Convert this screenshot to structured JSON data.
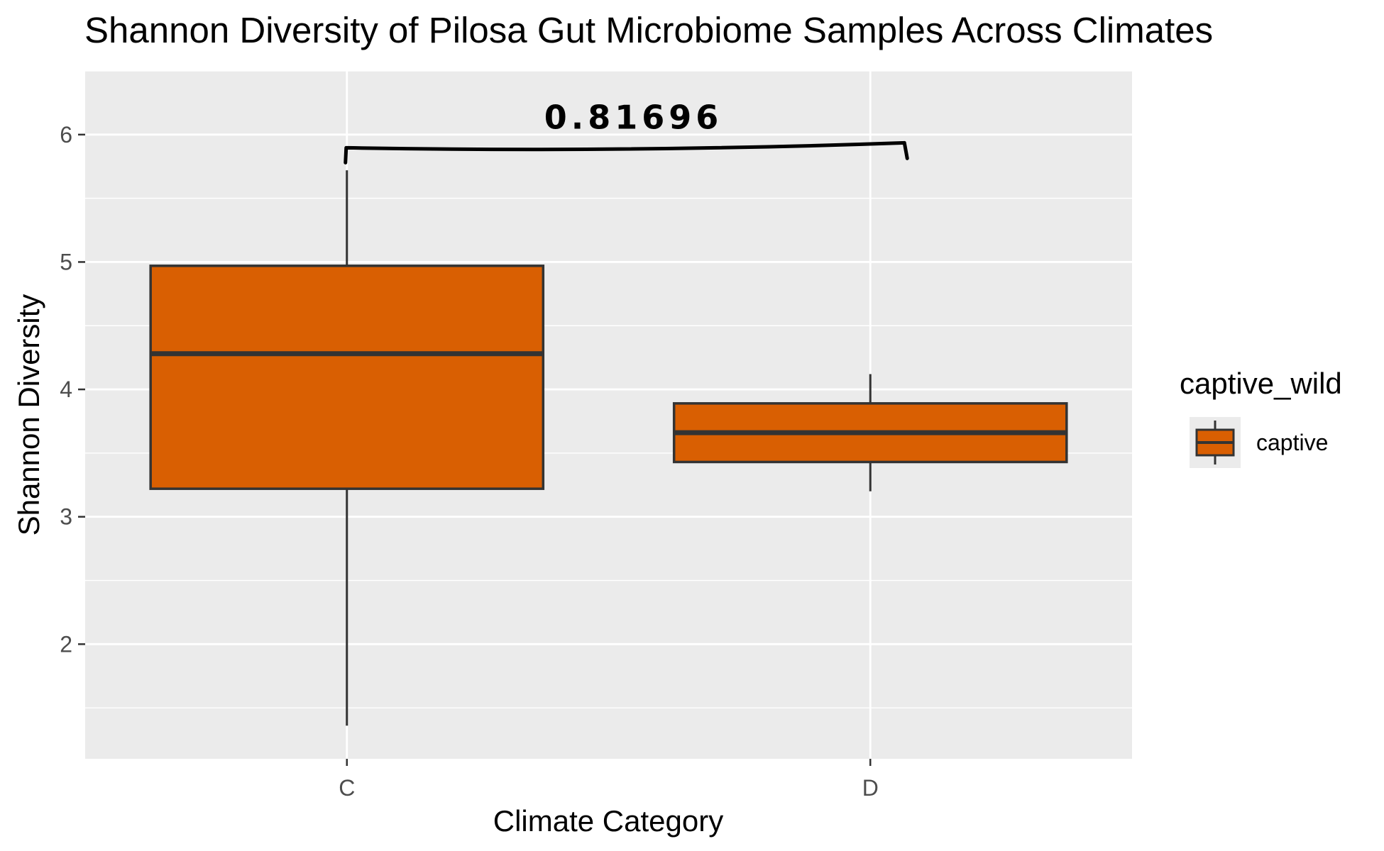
{
  "chart_data": {
    "type": "box",
    "title": "Shannon Diversity of Pilosa Gut Microbiome Samples Across Climates",
    "xlabel": "Climate Category",
    "ylabel": "Shannon Diversity",
    "categories": [
      "C",
      "D"
    ],
    "ylim": [
      1.1,
      6.5
    ],
    "yticks": [
      2,
      3,
      4,
      5,
      6
    ],
    "grid": true,
    "series": [
      {
        "name": "captive",
        "boxes": [
          {
            "category": "C",
            "min": 1.36,
            "q1": 3.22,
            "median": 4.28,
            "q3": 4.97,
            "max": 5.72
          },
          {
            "category": "D",
            "min": 3.2,
            "q1": 3.43,
            "median": 3.66,
            "q3": 3.89,
            "max": 4.12
          }
        ]
      }
    ],
    "legend": {
      "title": "captive_wild",
      "position": "right",
      "items": [
        {
          "label": "captive",
          "color": "#d95f02"
        }
      ]
    },
    "annotation": {
      "text": "0.81696",
      "from": "C",
      "to": "D",
      "y": 5.88
    },
    "colors": {
      "panel": "#ebebeb",
      "grid": "#ffffff",
      "box_fill": "#d95f02",
      "box_line": "#333333"
    }
  }
}
